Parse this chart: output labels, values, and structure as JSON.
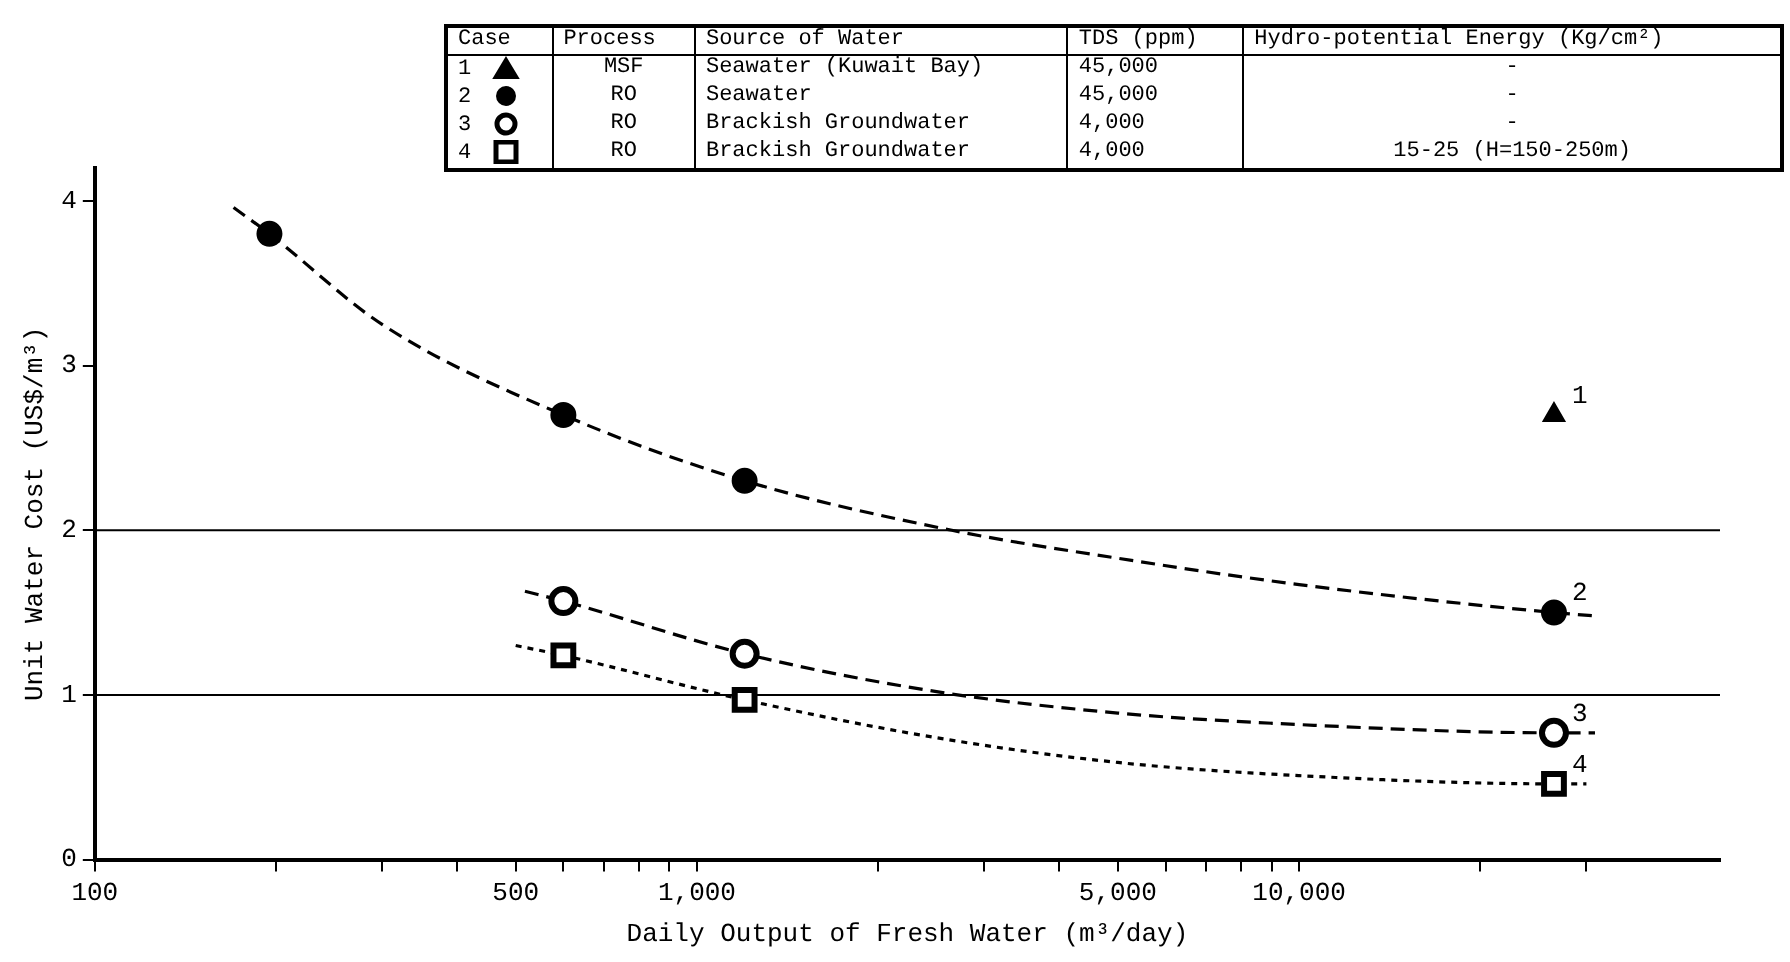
{
  "chart_data": {
    "type": "scatter",
    "xlabel": "Daily Output of Fresh Water (m³/day)",
    "ylabel": "Unit Water Cost (US$/m³)",
    "log": "x",
    "grid": false,
    "legend": "top left",
    "xlim": [
      100,
      50000
    ],
    "ylim": [
      0,
      4.2
    ],
    "yticks": [
      0,
      1,
      2,
      3,
      4
    ],
    "xticks": [
      {
        "value": 100,
        "label": "100"
      },
      {
        "value": 200,
        "label": null
      },
      {
        "value": 300,
        "label": null
      },
      {
        "value": 400,
        "label": null
      },
      {
        "value": 500,
        "label": "500"
      },
      {
        "value": 600,
        "label": null
      },
      {
        "value": 700,
        "label": null
      },
      {
        "value": 800,
        "label": null
      },
      {
        "value": 900,
        "label": null
      },
      {
        "value": 1000,
        "label": "1,000"
      },
      {
        "value": 2000,
        "label": null
      },
      {
        "value": 3000,
        "label": null
      },
      {
        "value": 4000,
        "label": null
      },
      {
        "value": 5000,
        "label": "5,000"
      },
      {
        "value": 6000,
        "label": null
      },
      {
        "value": 7000,
        "label": null
      },
      {
        "value": 8000,
        "label": null
      },
      {
        "value": 9000,
        "label": null
      },
      {
        "value": 10000,
        "label": "10,000"
      },
      {
        "value": 20000,
        "label": null
      },
      {
        "value": 30000,
        "label": null
      }
    ],
    "ref_lines": [
      {
        "axis": "y",
        "value": 1,
        "color": "#000000"
      },
      {
        "axis": "y",
        "value": 2,
        "color": "#000000"
      }
    ],
    "annotations": [
      "Case",
      "Process",
      "Source of Water",
      "TDS (ppm)",
      "Hydro-potential Energy (Kg/cm²)",
      "MSF",
      "Seawater (Kuwait Bay)",
      "45,000",
      "-",
      "RO",
      "Seawater",
      "45,000",
      "-",
      "RO",
      "Brackish Groundwater",
      "4,000",
      "-",
      "RO",
      "Brackish Groundwater",
      "4,000",
      "15-25  (H=150-250m)"
    ],
    "series": [
      {
        "name": "1",
        "color": "#000000",
        "marker": "triangle",
        "x": [
          26500
        ],
        "values": [
          2.7
        ]
      },
      {
        "name": "2",
        "color": "#000000",
        "marker": "circle",
        "x": [
          195,
          600,
          1200,
          26500
        ],
        "values": [
          3.8,
          2.7,
          2.3,
          1.5
        ]
      },
      {
        "name": "3",
        "color": "#000000",
        "marker": "circle",
        "x": [
          600,
          1200,
          26500
        ],
        "values": [
          1.57,
          1.25,
          0.77
        ]
      },
      {
        "name": "4",
        "color": "#000000",
        "marker": "square",
        "x": [
          600,
          1200,
          26500
        ],
        "values": [
          1.24,
          0.97,
          0.46
        ]
      },
      {
        "type": "line",
        "color": "#000000",
        "marker": "none",
        "line_style": "dashed",
        "x": [
          170,
          195,
          300,
          600,
          1200,
          2650,
          5000,
          10000,
          26500,
          31000
        ],
        "values": [
          3.96,
          3.8,
          3.25,
          2.7,
          2.3,
          2.0,
          1.83,
          1.67,
          1.5,
          1.48
        ]
      },
      {
        "type": "line",
        "color": "#000000",
        "marker": "none",
        "line_style": "dashed",
        "x": [
          518,
          600,
          1200,
          2500,
          5000,
          10000,
          26500,
          31000
        ],
        "values": [
          1.63,
          1.57,
          1.25,
          1.02,
          0.89,
          0.82,
          0.77,
          0.77
        ]
      },
      {
        "type": "line",
        "color": "#000000",
        "marker": "none",
        "line_style": "dotted",
        "x": [
          500,
          600,
          1200,
          2500,
          5000,
          10000,
          26500,
          30000
        ],
        "values": [
          1.3,
          1.24,
          0.97,
          0.74,
          0.59,
          0.51,
          0.46,
          0.46
        ]
      }
    ]
  }
}
